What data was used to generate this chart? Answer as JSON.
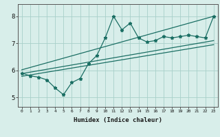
{
  "x_data": [
    0,
    1,
    2,
    3,
    4,
    5,
    6,
    7,
    8,
    9,
    10,
    11,
    12,
    13,
    14,
    15,
    16,
    17,
    18,
    19,
    20,
    21,
    22,
    23
  ],
  "y_data": [
    5.9,
    5.8,
    5.75,
    5.65,
    5.35,
    5.1,
    5.55,
    5.7,
    6.25,
    6.55,
    7.2,
    8.0,
    7.5,
    7.75,
    7.2,
    7.05,
    7.1,
    7.25,
    7.2,
    7.25,
    7.3,
    7.25,
    7.2,
    8.0
  ],
  "line1_x": [
    0,
    23
  ],
  "line1_y": [
    5.78,
    6.95
  ],
  "line2_x": [
    0,
    23
  ],
  "line2_y": [
    5.88,
    7.1
  ],
  "line3_x": [
    0,
    23
  ],
  "line3_y": [
    6.02,
    8.0
  ],
  "bg_color": "#d8eeea",
  "grid_color": "#a8cfc9",
  "line_color": "#1a6e63",
  "xlabel": "Humidex (Indice chaleur)",
  "xticks": [
    0,
    1,
    2,
    3,
    4,
    5,
    6,
    7,
    8,
    9,
    10,
    11,
    12,
    13,
    14,
    15,
    16,
    17,
    18,
    19,
    20,
    21,
    22,
    23
  ],
  "xlim": [
    -0.5,
    23.5
  ],
  "ylim": [
    4.65,
    8.45
  ],
  "yticks": [
    5,
    6,
    7,
    8
  ]
}
